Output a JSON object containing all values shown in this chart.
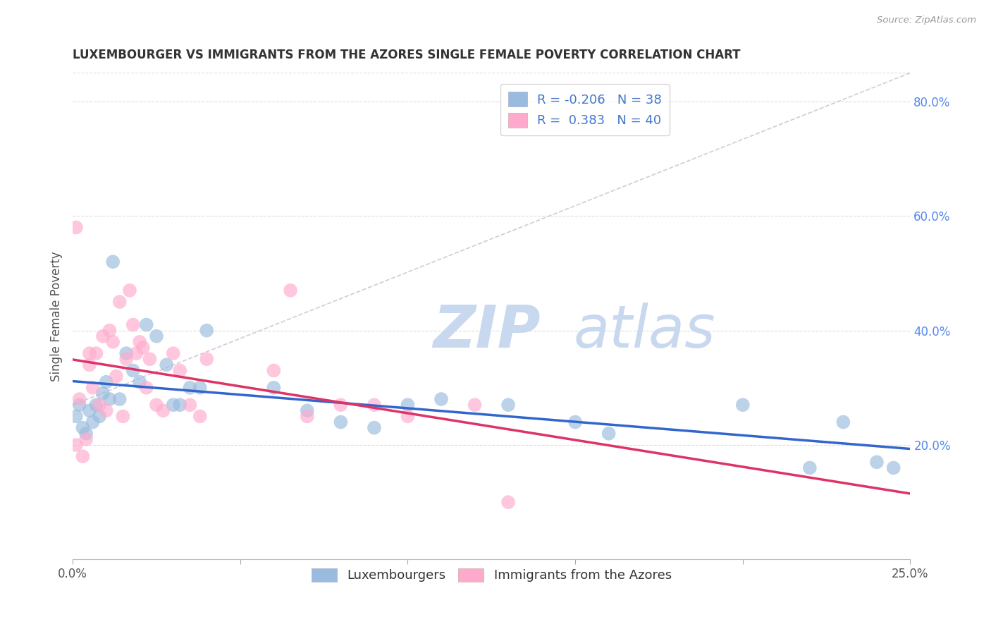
{
  "title": "LUXEMBOURGER VS IMMIGRANTS FROM THE AZORES SINGLE FEMALE POVERTY CORRELATION CHART",
  "source": "Source: ZipAtlas.com",
  "ylabel": "Single Female Poverty",
  "right_yticklabels": [
    "20.0%",
    "40.0%",
    "60.0%",
    "80.0%"
  ],
  "right_yticks": [
    0.2,
    0.4,
    0.6,
    0.8
  ],
  "xticks": [
    0.0,
    0.05,
    0.1,
    0.15,
    0.2,
    0.25
  ],
  "xticklabels": [
    "0.0%",
    "",
    "",
    "",
    "",
    "25.0%"
  ],
  "xlim": [
    0.0,
    0.25
  ],
  "ylim": [
    0.0,
    0.85
  ],
  "blue_R": -0.206,
  "blue_N": 38,
  "pink_R": 0.383,
  "pink_N": 40,
  "blue_color": "#99BBDD",
  "pink_color": "#FFAACC",
  "blue_trend_color": "#3366CC",
  "pink_trend_color": "#DD3366",
  "diag_color": "#CCBBCC",
  "watermark_zip_color": "#C8D8EE",
  "watermark_atlas_color": "#C8D8EE",
  "legend_label_blue": "Luxembourgers",
  "legend_label_pink": "Immigrants from the Azores",
  "legend_text_color": "#4477CC",
  "legend_label_color": "#333333",
  "grid_color": "#DDDDDD",
  "blue_x": [
    0.001,
    0.002,
    0.003,
    0.004,
    0.005,
    0.006,
    0.007,
    0.008,
    0.009,
    0.01,
    0.011,
    0.012,
    0.014,
    0.016,
    0.018,
    0.02,
    0.022,
    0.025,
    0.028,
    0.03,
    0.032,
    0.035,
    0.038,
    0.04,
    0.06,
    0.07,
    0.08,
    0.09,
    0.1,
    0.11,
    0.13,
    0.15,
    0.16,
    0.2,
    0.22,
    0.23,
    0.24,
    0.245
  ],
  "blue_y": [
    0.25,
    0.27,
    0.23,
    0.22,
    0.26,
    0.24,
    0.27,
    0.25,
    0.29,
    0.31,
    0.28,
    0.52,
    0.28,
    0.36,
    0.33,
    0.31,
    0.41,
    0.39,
    0.34,
    0.27,
    0.27,
    0.3,
    0.3,
    0.4,
    0.3,
    0.26,
    0.24,
    0.23,
    0.27,
    0.28,
    0.27,
    0.24,
    0.22,
    0.27,
    0.16,
    0.24,
    0.17,
    0.16
  ],
  "pink_x": [
    0.001,
    0.001,
    0.002,
    0.003,
    0.004,
    0.005,
    0.005,
    0.006,
    0.007,
    0.008,
    0.009,
    0.01,
    0.011,
    0.012,
    0.013,
    0.014,
    0.015,
    0.016,
    0.017,
    0.018,
    0.019,
    0.02,
    0.021,
    0.022,
    0.023,
    0.025,
    0.027,
    0.03,
    0.032,
    0.035,
    0.038,
    0.04,
    0.06,
    0.065,
    0.07,
    0.08,
    0.09,
    0.1,
    0.12,
    0.13
  ],
  "pink_y": [
    0.2,
    0.58,
    0.28,
    0.18,
    0.21,
    0.34,
    0.36,
    0.3,
    0.36,
    0.27,
    0.39,
    0.26,
    0.4,
    0.38,
    0.32,
    0.45,
    0.25,
    0.35,
    0.47,
    0.41,
    0.36,
    0.38,
    0.37,
    0.3,
    0.35,
    0.27,
    0.26,
    0.36,
    0.33,
    0.27,
    0.25,
    0.35,
    0.33,
    0.47,
    0.25,
    0.27,
    0.27,
    0.25,
    0.27,
    0.1
  ]
}
